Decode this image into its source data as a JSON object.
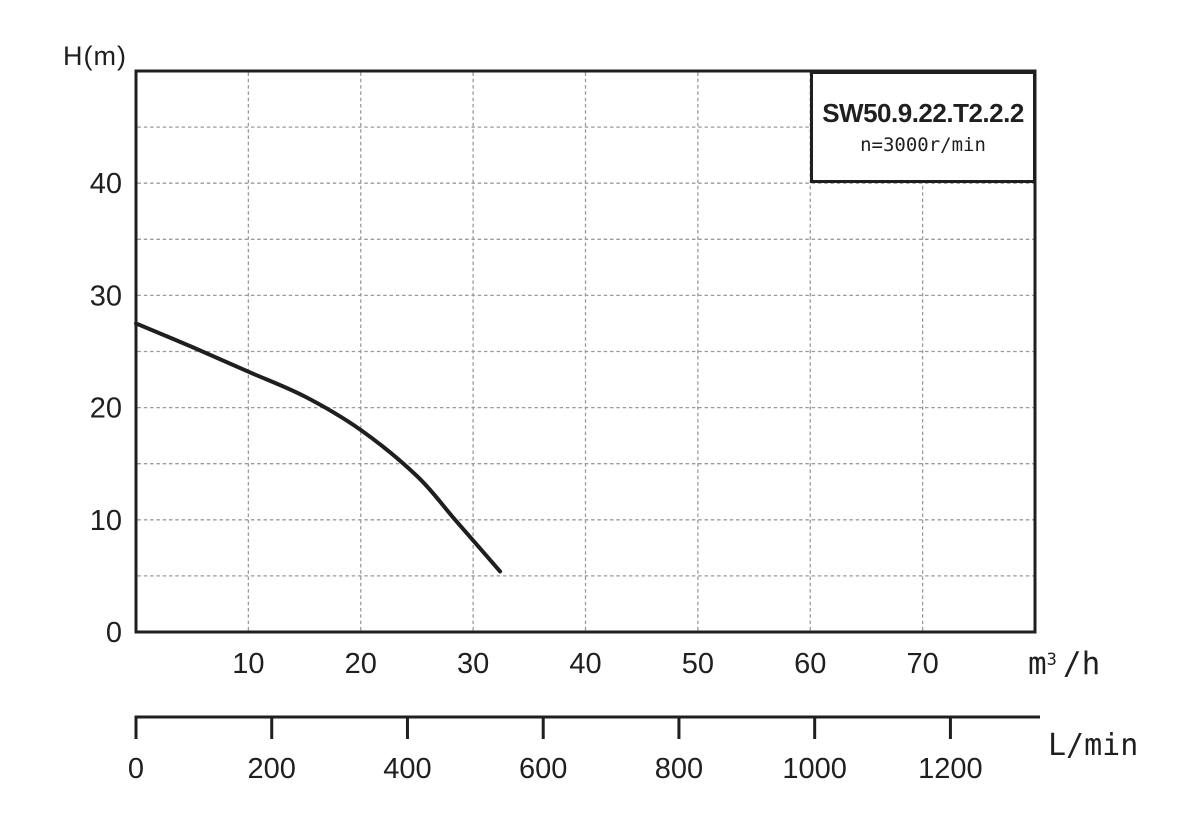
{
  "colors": {
    "axis": "#1f1f1f",
    "curve": "#1f1f1f",
    "grid": "#9b9b9b",
    "text": "#1f1f1f",
    "background": "#ffffff"
  },
  "chart_data": {
    "type": "line",
    "title_box": {
      "model": "SW50.9.22.T2.2.2",
      "speed": "n=3000r/min"
    },
    "y_axis": {
      "label": "H(m)",
      "tick_labels": [
        0,
        10,
        20,
        30,
        40
      ],
      "range": [
        0,
        50
      ],
      "grid_step": 5,
      "grid_style": "dashed"
    },
    "x_axis_primary": {
      "unit": "m³/h",
      "unit_base": "m",
      "unit_sup": "3",
      "unit_rest": "/h",
      "tick_labels": [
        10,
        20,
        30,
        40,
        50,
        60,
        70
      ],
      "range": [
        0,
        80
      ],
      "grid_step": 10,
      "grid_style": "dashed"
    },
    "x_axis_secondary": {
      "unit": "L/min",
      "tick_labels": [
        0,
        200,
        400,
        600,
        800,
        1000,
        1200
      ],
      "range": [
        0,
        1332
      ]
    },
    "series": [
      {
        "name": "head-flow-curve",
        "x_unit": "m³/h",
        "y_unit": "m",
        "points": [
          [
            0,
            27.5
          ],
          [
            5,
            25.4
          ],
          [
            10,
            23.2
          ],
          [
            15,
            21.0
          ],
          [
            20,
            18.0
          ],
          [
            25,
            13.9
          ],
          [
            28.4,
            10.0
          ],
          [
            32.4,
            5.4
          ]
        ]
      }
    ]
  }
}
